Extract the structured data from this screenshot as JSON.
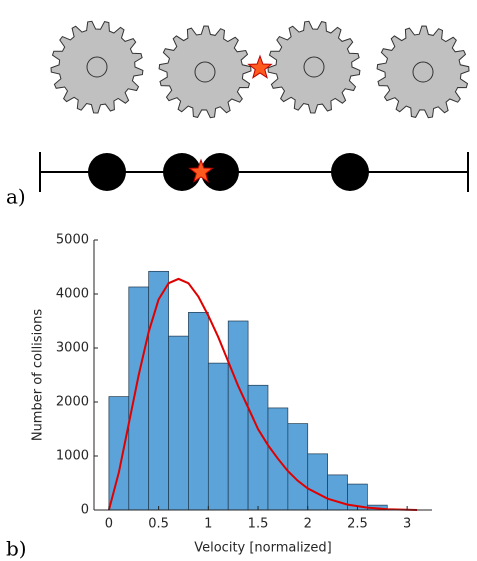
{
  "labels": {
    "a": "a)",
    "b": "b)"
  },
  "chart_data": {
    "type": "histogram",
    "xlabel": "Velocity [normalized]",
    "ylabel": "Number of collisions",
    "bins": [
      0,
      0.2,
      0.4,
      0.6,
      0.8,
      1.0,
      1.2,
      1.4,
      1.6,
      1.8,
      2.0,
      2.2,
      2.4,
      2.6,
      2.8
    ],
    "values": [
      2100,
      4130,
      4420,
      3220,
      3660,
      2720,
      3500,
      2310,
      1890,
      1600,
      1040,
      650,
      480,
      90
    ],
    "color": "#5ba3d9",
    "fit": {
      "color": "#e00000",
      "x": [
        0,
        0.1,
        0.2,
        0.3,
        0.4,
        0.5,
        0.6,
        0.7,
        0.8,
        0.9,
        1.0,
        1.1,
        1.2,
        1.3,
        1.4,
        1.5,
        1.6,
        1.7,
        1.8,
        1.9,
        2.0,
        2.2,
        2.4,
        2.6,
        2.8,
        3.1
      ],
      "y": [
        0,
        700,
        1600,
        2500,
        3300,
        3900,
        4200,
        4280,
        4200,
        3950,
        3600,
        3200,
        2750,
        2300,
        1900,
        1500,
        1200,
        950,
        720,
        540,
        400,
        210,
        100,
        45,
        15,
        0
      ]
    },
    "xlim": [
      -0.15,
      3.25
    ],
    "ylim": [
      0,
      5000
    ],
    "xticks": [
      0,
      0.5,
      1,
      1.5,
      2,
      2.5,
      3
    ],
    "yticks": [
      0,
      1000,
      2000,
      3000,
      4000,
      5000
    ]
  }
}
